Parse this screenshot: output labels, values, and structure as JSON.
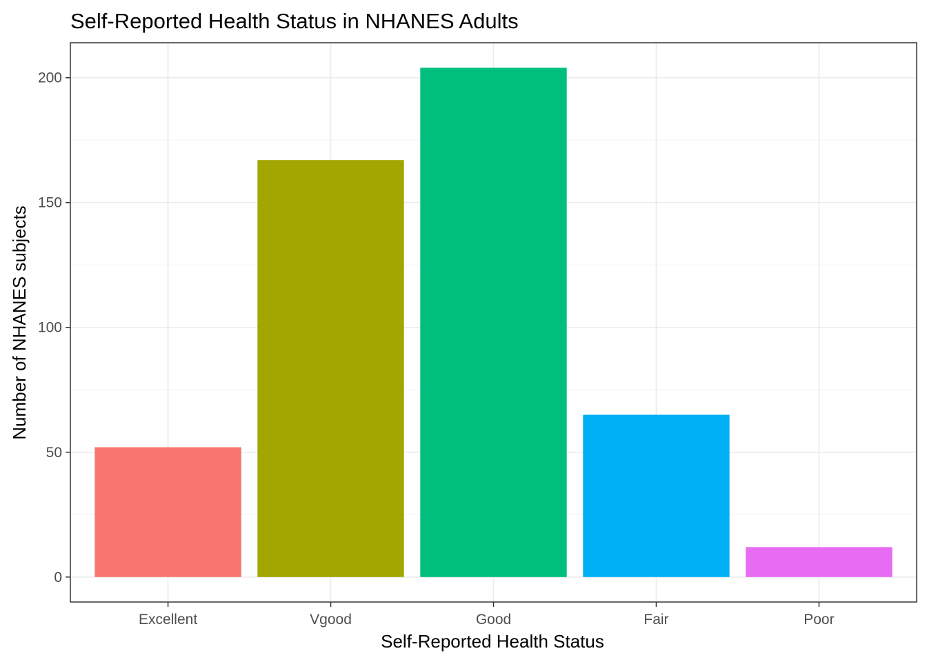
{
  "chart_data": {
    "type": "bar",
    "title": "Self-Reported Health Status in NHANES Adults",
    "xlabel": "Self-Reported Health Status",
    "ylabel": "Number of NHANES subjects",
    "categories": [
      "Excellent",
      "Vgood",
      "Good",
      "Fair",
      "Poor"
    ],
    "values": [
      52,
      167,
      204,
      65,
      12
    ],
    "colors": [
      "#F8766D",
      "#A3A500",
      "#00BF7D",
      "#00B0F6",
      "#E76BF3"
    ],
    "ylim": [
      -10,
      214
    ],
    "yticks": [
      0,
      50,
      100,
      150,
      200
    ],
    "grid": true,
    "legend": "none"
  }
}
